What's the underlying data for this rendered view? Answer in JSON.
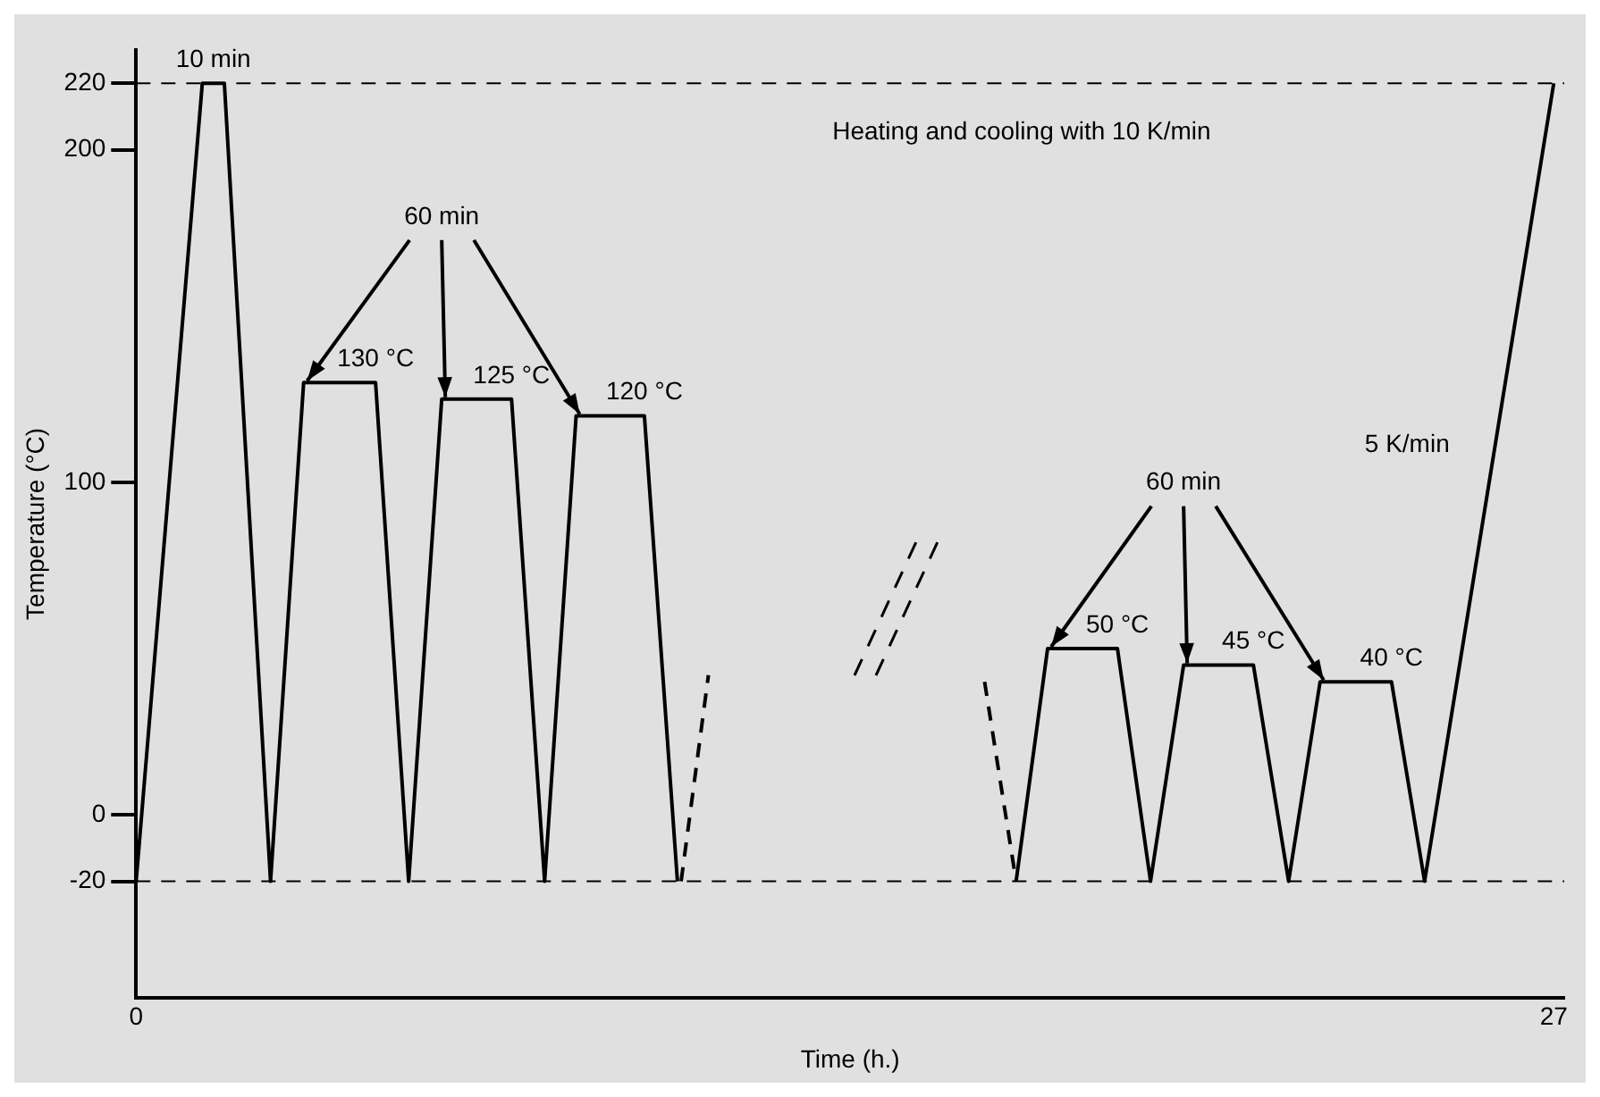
{
  "chart_data": {
    "type": "line",
    "xlabel": "Time (h.)",
    "ylabel": "Temperature (°C)",
    "x": [
      0,
      1.26,
      1.68,
      2.56,
      3.19,
      4.56,
      5.19,
      5.82,
      7.15,
      7.78,
      8.38,
      9.68,
      10.31,
      10.35,
      16.76,
      17.36,
      18.69,
      19.32,
      19.95,
      21.28,
      21.95,
      22.55,
      23.91,
      24.54,
      27
    ],
    "series": [
      {
        "color": "#000000",
        "line_style": "solid",
        "values": [
          -20,
          220,
          220,
          -20,
          130,
          130,
          -20,
          125,
          125,
          -20,
          120,
          120,
          -20,
          null,
          -20,
          50,
          50,
          -20,
          45,
          45,
          -20,
          40,
          40,
          -20,
          220
        ]
      },
      {
        "color": "#000000",
        "line_style": "dashed",
        "x": [
          10.38,
          10.9
        ],
        "values": [
          -20,
          42
        ]
      },
      {
        "color": "#000000",
        "line_style": "dashed",
        "x": [
          16.16,
          16.76
        ],
        "values": [
          40,
          -20
        ]
      }
    ],
    "xlim": [
      0,
      27.2
    ],
    "ylim": [
      -55,
      230
    ],
    "xticks": [
      0,
      27
    ],
    "yticks": [
      -20,
      0,
      100,
      200,
      220
    ],
    "ref_lines": [
      {
        "axis": "y",
        "value": 220,
        "color": "#000000",
        "line_style": "dashed"
      },
      {
        "axis": "y",
        "value": -20,
        "color": "#000000",
        "line_style": "dashed"
      }
    ],
    "annotations": [
      {
        "text": "10 min",
        "x": 1.47,
        "y": 220
      },
      {
        "text": "60 min",
        "x": 5.82,
        "y": 125
      },
      {
        "text": "130 °C",
        "x": 4.56,
        "y": 130
      },
      {
        "text": "125 °C",
        "x": 7.15,
        "y": 125
      },
      {
        "text": "120 °C",
        "x": 9.68,
        "y": 120
      },
      {
        "text": "60 min",
        "x": 19.95,
        "y": 45
      },
      {
        "text": "50 °C",
        "x": 18.69,
        "y": 50
      },
      {
        "text": "45 °C",
        "x": 21.28,
        "y": 45
      },
      {
        "text": "40 °C",
        "x": 23.91,
        "y": 40
      },
      "Heating and cooling with 10 K/min",
      "5 K/min"
    ],
    "grid": false,
    "legend": false,
    "marker": "none"
  }
}
